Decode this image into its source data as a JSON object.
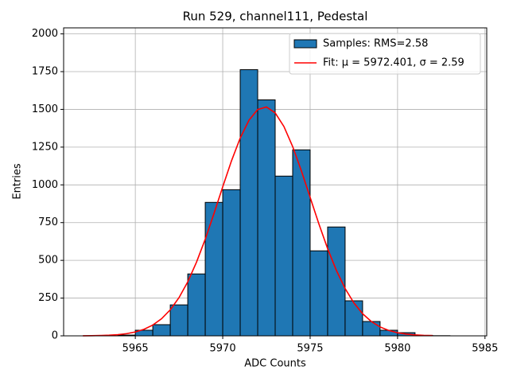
{
  "chart_data": {
    "type": "histogram",
    "title": "Run 529, channel111, Pedestal",
    "x_label": "ADC Counts",
    "y_label": "Entries",
    "xlim": [
      5960.9,
      5985.1
    ],
    "ylim": [
      0,
      2040
    ],
    "xticks": [
      5965,
      5970,
      5975,
      5980,
      5985
    ],
    "yticks": [
      0,
      250,
      500,
      750,
      1000,
      1250,
      1500,
      1750,
      2000
    ],
    "grid": true,
    "legend": "upper right",
    "series": [
      {
        "type": "histogram",
        "name": "Samples: RMS=2.58",
        "color": "#1f77b4",
        "bins": [
          5962,
          5963,
          5964,
          5965,
          5966,
          5967,
          5968,
          5969,
          5970,
          5971,
          5972,
          5973,
          5974,
          5975,
          5976,
          5977,
          5978,
          5979,
          5980,
          5981,
          5982,
          5983,
          5984
        ],
        "values": [
          0,
          1,
          5,
          37,
          74,
          205,
          410,
          884,
          968,
          1763,
          1563,
          1058,
          1232,
          563,
          721,
          232,
          95,
          37,
          21,
          3,
          1,
          0
        ]
      },
      {
        "type": "line",
        "name": "Fit: μ = 5972.401, σ = 2.59",
        "color": "#ff0000",
        "x": [
          5962,
          5962.5,
          5963,
          5963.5,
          5964,
          5964.5,
          5965,
          5965.5,
          5966,
          5966.5,
          5967,
          5967.5,
          5968,
          5968.5,
          5969,
          5969.5,
          5970,
          5970.5,
          5971,
          5971.5,
          5972,
          5972.5,
          5973,
          5973.5,
          5974,
          5974.5,
          5975,
          5975.5,
          5976,
          5976.5,
          5977,
          5977.5,
          5978,
          5978.5,
          5979,
          5979.5,
          5980,
          5980.5,
          5981,
          5981.5,
          5982
        ],
        "values": [
          0.5,
          1.0,
          2.1,
          4.1,
          7.9,
          14.5,
          25.6,
          43.6,
          71.6,
          113.2,
          172.5,
          253.2,
          358.0,
          488.0,
          640.5,
          810.1,
          987.1,
          1158.8,
          1310.5,
          1428.0,
          1499.0,
          1515.9,
          1476.9,
          1386.4,
          1253.8,
          1092.4,
          916.9,
          741.5,
          577.7,
          433.6,
          313.6,
          218.4,
          146.7,
          94.8,
          59.0,
          35.5,
          20.5,
          11.4,
          6.1,
          3.2,
          1.6
        ]
      }
    ]
  }
}
